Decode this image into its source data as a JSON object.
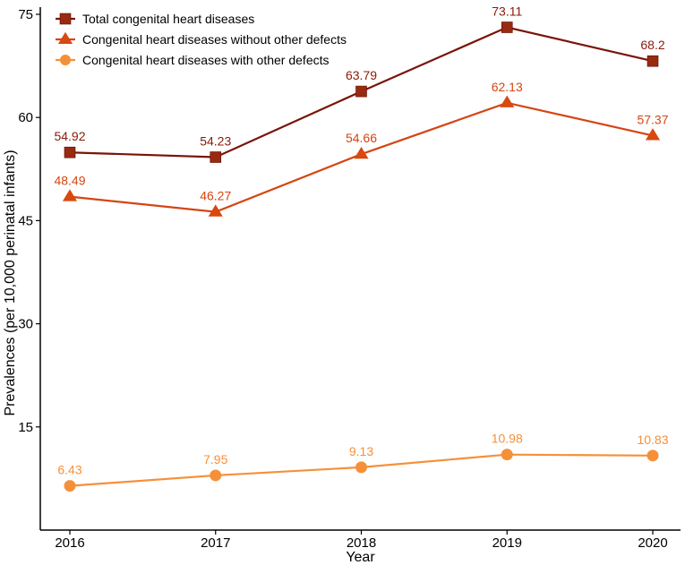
{
  "chart_data": {
    "type": "line",
    "title": "",
    "xlabel": "Year",
    "ylabel": "Prevalences (per 10,000 perinatal infants)",
    "categories": [
      "2016",
      "2017",
      "2018",
      "2019",
      "2020"
    ],
    "ylim": [
      0,
      75
    ],
    "yticks": [
      15,
      30,
      45,
      60,
      75
    ],
    "grid": false,
    "legend_position": "top-left",
    "series": [
      {
        "name": "Total congenital heart diseases",
        "marker": "square",
        "color": "#7a1408",
        "marker_color": "#9a2a0f",
        "values": [
          54.92,
          54.23,
          63.79,
          73.11,
          68.2
        ],
        "labels": [
          "54.92",
          "54.23",
          "63.79",
          "73.11",
          "68.2"
        ]
      },
      {
        "name": "Congenital heart diseases without other defects",
        "marker": "triangle",
        "color": "#d44512",
        "marker_color": "#d8480f",
        "values": [
          48.49,
          46.27,
          54.66,
          62.13,
          57.37
        ],
        "labels": [
          "48.49",
          "46.27",
          "54.66",
          "62.13",
          "57.37"
        ]
      },
      {
        "name": "Congenital heart diseases with other defects",
        "marker": "circle",
        "color": "#f5903a",
        "marker_color": "#f5903a",
        "values": [
          6.43,
          7.95,
          9.13,
          10.98,
          10.83
        ],
        "labels": [
          "6.43",
          "7.95",
          "9.13",
          "10.98",
          "10.83"
        ]
      }
    ]
  }
}
